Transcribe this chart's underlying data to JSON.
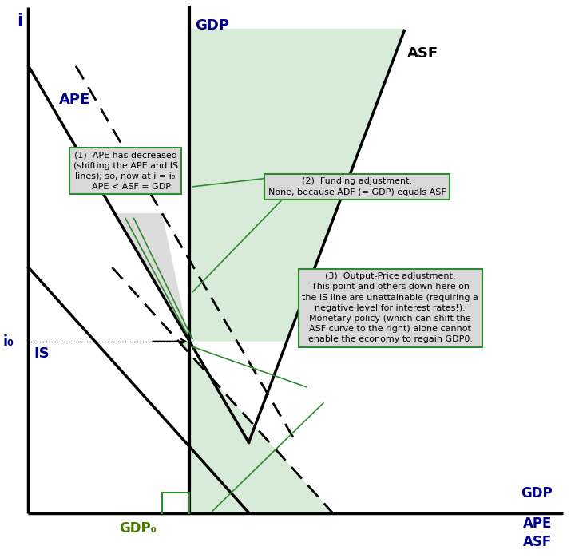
{
  "bg_color": "#ffffff",
  "figsize": [
    7.15,
    6.99
  ],
  "dpi": 100,
  "xlim": [
    0,
    10
  ],
  "ylim": [
    0,
    10
  ],
  "colors": {
    "main_lines": "#000000",
    "dashed_lines": "#000000",
    "green_lines": "#2d8a2d",
    "blue_label": "#00008B",
    "green_label": "#4a7a00",
    "box_edge": "#2d8a2d",
    "box_face": "#d8d8d8",
    "shaded_gray": "#bbbbbb",
    "shaded_green": "#90c890"
  },
  "labels": {
    "i_axis": "i",
    "x_axis_gdp": "GDP",
    "x_axis_ape": "APE",
    "x_axis_asf": "ASF",
    "gdp_line": "GDP",
    "asf_line": "ASF",
    "ape_line": "APE",
    "is_line": "IS",
    "i0_label": "i₀",
    "gdp0_label": "GDP₀"
  },
  "ann1_text": "(1)  APE has decreased\n(shifting the APE and IS\nlines); so, now at i = i₀\n    APE < ASF = GDP",
  "ann2_text": "(2)  Funding adjustment:\nNone, because ADF (= GDP) equals ASF",
  "ann3_text": "(3)  Output-Price adjustment:\nThis point and others down here on\nthe IS line are unattainable (requiring a\nnegative level for interest rates!).\nMonetary policy (which can shift the\nASF curve to the right) alone cannot\nenable the economy to regain GDP0."
}
